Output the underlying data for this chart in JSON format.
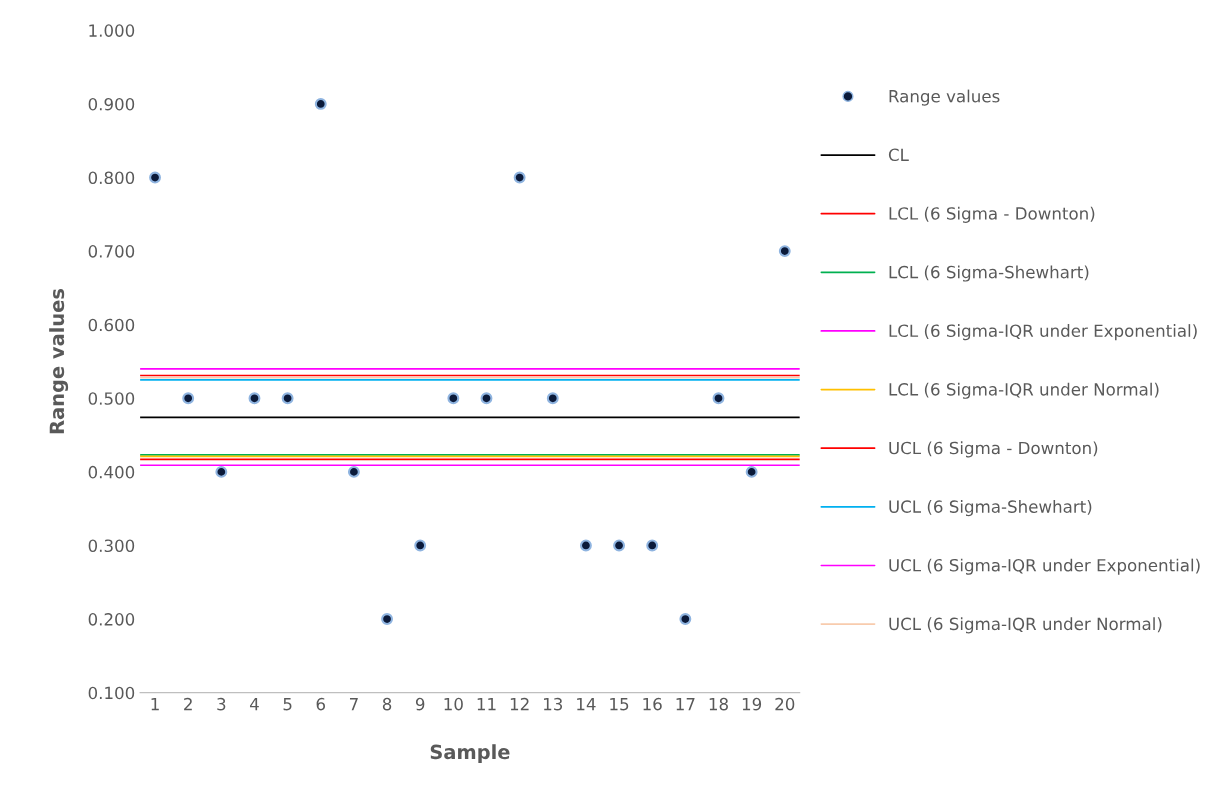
{
  "chart_data": {
    "type": "scatter",
    "xlabel": "Sample",
    "ylabel": "Range values",
    "categories": [
      "1",
      "2",
      "3",
      "4",
      "5",
      "6",
      "7",
      "8",
      "9",
      "10",
      "11",
      "12",
      "13",
      "14",
      "15",
      "16",
      "17",
      "18",
      "19",
      "20"
    ],
    "series": [
      {
        "name": "Range values",
        "color": "#0b1a3a",
        "values": [
          0.8,
          0.5,
          0.4,
          0.5,
          0.5,
          0.9,
          0.4,
          0.2,
          0.3,
          0.5,
          0.5,
          0.8,
          0.5,
          0.3,
          0.3,
          0.3,
          0.2,
          0.5,
          0.4,
          0.7
        ]
      }
    ],
    "ref_lines": [
      {
        "axis": "y",
        "value": 0.474,
        "label": "CL",
        "color": "#000000"
      },
      {
        "axis": "y",
        "value": 0.417,
        "label": "LCL (6 Sigma - Downton)",
        "color": "#ff0000"
      },
      {
        "axis": "y",
        "value": 0.423,
        "label": "LCL (6 Sigma-Shewhart)",
        "color": "#00b050"
      },
      {
        "axis": "y",
        "value": 0.409,
        "label": "LCL (6 Sigma-IQR under Exponential)",
        "color": "#ff00ff"
      },
      {
        "axis": "y",
        "value": 0.421,
        "label": "LCL (6 Sigma-IQR under Normal)",
        "color": "#ffc000"
      },
      {
        "axis": "y",
        "value": 0.531,
        "label": "UCL (6 Sigma - Downton)",
        "color": "#ff0000"
      },
      {
        "axis": "y",
        "value": 0.525,
        "label": "UCL (6 Sigma-Shewhart)",
        "color": "#00b0f0"
      },
      {
        "axis": "y",
        "value": 0.54,
        "label": "UCL (6 Sigma-IQR under Exponential)",
        "color": "#ff00ff"
      },
      {
        "axis": "y",
        "value": 0.528,
        "label": "UCL (6 Sigma-IQR under Normal)",
        "color": "#f8cbad"
      }
    ],
    "ylim": [
      0.1,
      1.0
    ],
    "yticks": [
      {
        "value": 0.1,
        "label": "0.100"
      },
      {
        "value": 0.2,
        "label": "0.200"
      },
      {
        "value": 0.3,
        "label": "0.300"
      },
      {
        "value": 0.4,
        "label": "0.400"
      },
      {
        "value": 0.5,
        "label": "0.500"
      },
      {
        "value": 0.6,
        "label": "0.600"
      },
      {
        "value": 0.7,
        "label": "0.700"
      },
      {
        "value": 0.8,
        "label": "0.800"
      },
      {
        "value": 0.9,
        "label": "0.900"
      },
      {
        "value": 1.0,
        "label": "1.000"
      }
    ],
    "grid": false,
    "legend": "right",
    "marker": "circle"
  }
}
